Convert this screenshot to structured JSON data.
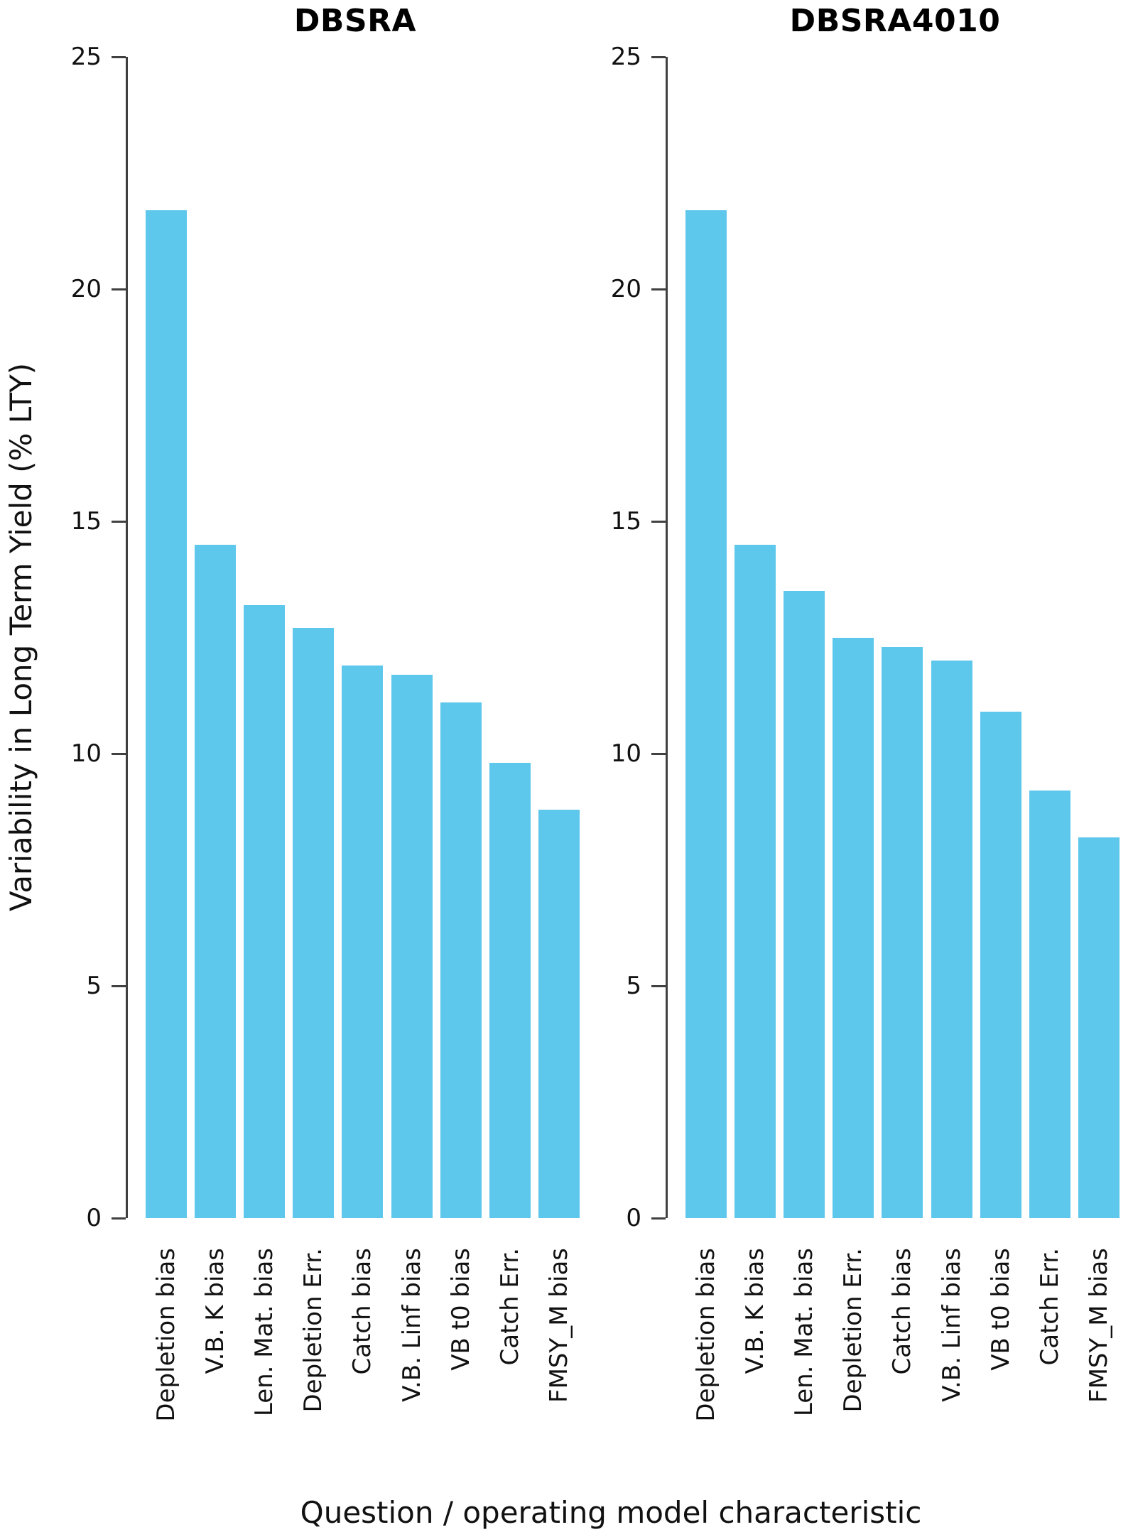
{
  "page": {
    "ylabel": "Variability in Long Term Yield (% LTY)",
    "xlabel": "Question / operating model characteristic"
  },
  "style": {
    "bar_color": "#5EC7EC",
    "axis_color": "#404040",
    "text_color": "#111111"
  },
  "chart_data": [
    {
      "type": "bar",
      "title": "DBSRA",
      "categories": [
        "Depletion bias",
        "V.B. K bias",
        "Len. Mat. bias",
        "Depletion Err.",
        "Catch bias",
        "V.B. Linf bias",
        "VB t0 bias",
        "Catch Err.",
        "FMSY_M bias"
      ],
      "values": [
        21.7,
        14.5,
        13.2,
        12.7,
        11.9,
        11.7,
        11.1,
        9.8,
        8.8
      ],
      "xlabel": "Question / operating model characteristic",
      "ylabel": "Variability in Long Term Yield (% LTY)",
      "ylim": [
        0,
        25
      ],
      "yticks": [
        0,
        5,
        10,
        15,
        20,
        25
      ],
      "bar_color": "#5EC7EC",
      "grid": "off",
      "legend": "none"
    },
    {
      "type": "bar",
      "title": "DBSRA4010",
      "categories": [
        "Depletion bias",
        "V.B. K bias",
        "Len. Mat. bias",
        "Depletion Err.",
        "Catch bias",
        "V.B. Linf bias",
        "VB t0 bias",
        "Catch Err.",
        "FMSY_M bias"
      ],
      "values": [
        21.7,
        14.5,
        13.5,
        12.5,
        12.3,
        12.0,
        10.9,
        9.2,
        8.2
      ],
      "xlabel": "Question / operating model characteristic",
      "ylabel": "Variability in Long Term Yield (% LTY)",
      "ylim": [
        0,
        25
      ],
      "yticks": [
        0,
        5,
        10,
        15,
        20,
        25
      ],
      "bar_color": "#5EC7EC",
      "grid": "off",
      "legend": "none"
    }
  ]
}
